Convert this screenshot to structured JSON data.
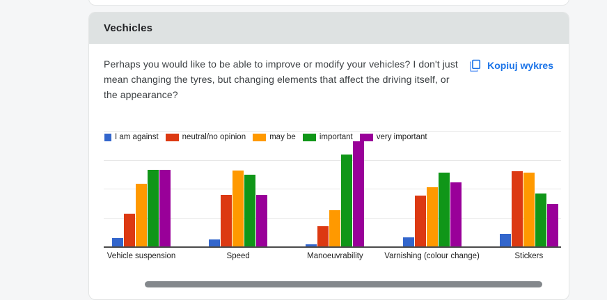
{
  "card": {
    "title": "Vechicles",
    "question": "Perhaps you would like to be able to improve or modify your vehicles? I don't just mean changing the tyres, but changing elements that affect the driving itself, or the appearance?",
    "copy_button": {
      "label": "Kopiuj wykres",
      "color": "#1a73e8"
    }
  },
  "chart_data": {
    "type": "bar",
    "title": "",
    "categories": [
      "Vehicle suspension",
      "Speed",
      "Manoeuvrability",
      "Varnishing (colour change)",
      "Stickers"
    ],
    "series": [
      {
        "name": "I am against",
        "color": "#3366cc",
        "values": [
          1.5,
          1.2,
          0.4,
          1.6,
          2.2
        ]
      },
      {
        "name": "neutral/no opinion",
        "color": "#dc3912",
        "values": [
          5.7,
          8.9,
          3.5,
          8.8,
          13.0
        ]
      },
      {
        "name": "may be",
        "color": "#ff9900",
        "values": [
          10.8,
          13.1,
          6.3,
          10.2,
          12.8
        ]
      },
      {
        "name": "important",
        "color": "#109618",
        "values": [
          13.3,
          12.4,
          15.9,
          12.8,
          9.2
        ]
      },
      {
        "name": "very important",
        "color": "#990099",
        "values": [
          13.3,
          8.9,
          18.2,
          11.1,
          7.3
        ]
      }
    ],
    "xlabel": "",
    "ylabel": "",
    "ylim": [
      0,
      20
    ],
    "gridline_step": 5,
    "y_axis_labels_visible": false,
    "grid": true,
    "legend_position": "top"
  }
}
